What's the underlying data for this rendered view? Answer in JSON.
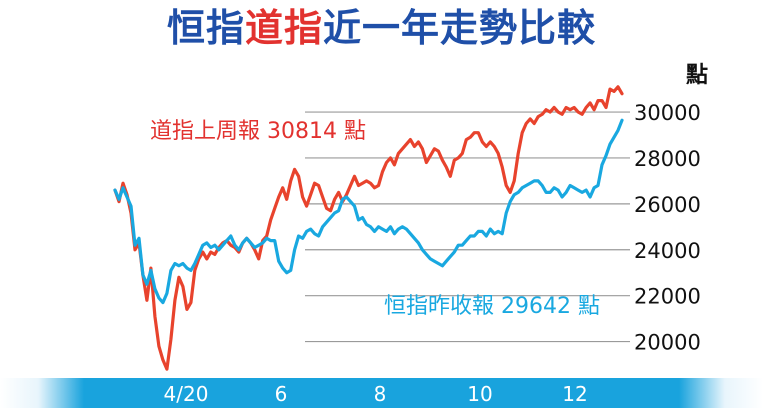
{
  "title": {
    "part1": "恒指",
    "part2": "道指",
    "part3": "近一年走勢比較"
  },
  "colors": {
    "title_blue": "#1f4fa8",
    "title_red": "#e2322f",
    "dow_line": "#e8432d",
    "hsi_line": "#19a8e0",
    "band_light": "#e8f5fc",
    "band_mid": "#19a3dd"
  },
  "chart_data": {
    "type": "line",
    "ylabel": "點",
    "ylim": [
      18500,
      31200
    ],
    "yticks": [
      20000,
      22000,
      24000,
      26000,
      28000,
      30000
    ],
    "ytick_labels": [
      "20000",
      "22000",
      "24000",
      "26000",
      "28000",
      "30000"
    ],
    "grid": true,
    "x_ticks": [
      "4/20",
      "6",
      "8",
      "10",
      "12"
    ],
    "series": [
      {
        "name": "道指上周報 30814 點",
        "color": "#e8432d",
        "values": [
          26600,
          26100,
          26900,
          26400,
          25600,
          24000,
          24300,
          22900,
          21800,
          23200,
          21100,
          19800,
          19200,
          18800,
          20100,
          21800,
          22800,
          22400,
          21400,
          21700,
          23100,
          23600,
          23900,
          23600,
          23900,
          23800,
          24100,
          24300,
          24400,
          24200,
          24100,
          23900,
          24300,
          24500,
          24300,
          24000,
          23600,
          24400,
          24600,
          25300,
          25800,
          26300,
          26700,
          26200,
          27000,
          27500,
          27200,
          26300,
          25900,
          26400,
          26900,
          26800,
          26300,
          25800,
          25700,
          26200,
          26500,
          26100,
          26400,
          26800,
          27200,
          26800,
          26900,
          27000,
          26900,
          26700,
          26800,
          27400,
          27800,
          28000,
          27700,
          28200,
          28400,
          28600,
          28800,
          28500,
          28700,
          28400,
          27800,
          28100,
          28400,
          28300,
          27900,
          27600,
          27200,
          27900,
          28000,
          28200,
          28800,
          28900,
          29100,
          29100,
          28700,
          28500,
          28700,
          28500,
          28200,
          27600,
          26800,
          26500,
          27000,
          28200,
          29100,
          29500,
          29700,
          29500,
          29800,
          29900,
          30100,
          30000,
          30200,
          30000,
          29900,
          30200,
          30100,
          30200,
          30000,
          29900,
          30200,
          30400,
          30100,
          30500,
          30500,
          30200,
          31000,
          30900,
          31100,
          30800
        ]
      },
      {
        "name": "恒指昨收報 29642 點",
        "color": "#19a8e0",
        "values": [
          26600,
          26200,
          26700,
          26300,
          25900,
          24200,
          24500,
          22900,
          22500,
          23100,
          22300,
          21900,
          21700,
          22100,
          23100,
          23400,
          23300,
          23400,
          23200,
          23100,
          23400,
          23800,
          24200,
          24300,
          24100,
          24200,
          24000,
          24200,
          24400,
          24600,
          24200,
          24000,
          24300,
          24500,
          24300,
          24100,
          24200,
          24300,
          24500,
          24400,
          24400,
          23500,
          23200,
          23000,
          23100,
          24000,
          24600,
          24500,
          24800,
          24900,
          24700,
          24600,
          25000,
          25200,
          25400,
          25600,
          25700,
          26200,
          26300,
          26100,
          25900,
          25300,
          25400,
          25100,
          25000,
          24800,
          25000,
          24900,
          24800,
          25000,
          24700,
          24900,
          25000,
          24900,
          24700,
          24500,
          24300,
          24000,
          23800,
          23600,
          23500,
          23400,
          23300,
          23500,
          23700,
          23900,
          24200,
          24200,
          24400,
          24600,
          24600,
          24800,
          24800,
          24600,
          24900,
          24700,
          24800,
          24700,
          25600,
          26100,
          26400,
          26500,
          26700,
          26800,
          26900,
          27000,
          27000,
          26800,
          26500,
          26500,
          26700,
          26600,
          26300,
          26500,
          26800,
          26700,
          26600,
          26500,
          26600,
          26300,
          26700,
          26800,
          27700,
          28100,
          28600,
          28900,
          29200,
          29642
        ]
      }
    ]
  }
}
